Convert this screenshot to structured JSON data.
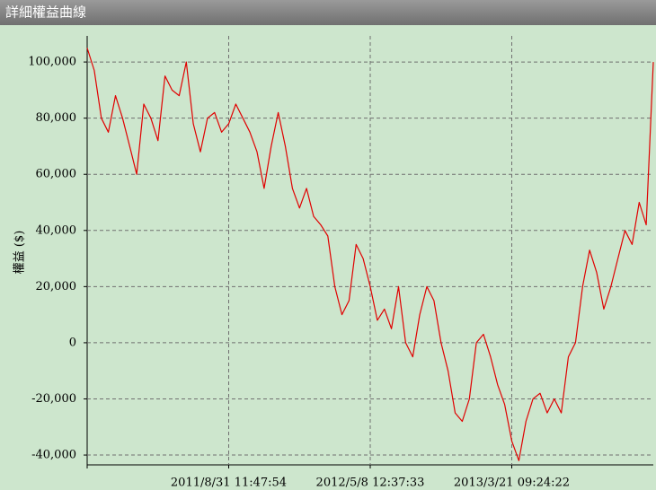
{
  "chart_data": {
    "type": "line",
    "title": "詳細權益曲線",
    "y_label": "權益 ($)",
    "categories": [
      null,
      null,
      null,
      null,
      null,
      null,
      null,
      null,
      null,
      null,
      null,
      null,
      null,
      null,
      null,
      null,
      null,
      null,
      null,
      null,
      "2011/8/31 11:47:54",
      null,
      null,
      null,
      null,
      null,
      null,
      null,
      null,
      null,
      null,
      null,
      null,
      null,
      null,
      null,
      null,
      null,
      null,
      null,
      "2012/5/8 12:37:33",
      null,
      null,
      null,
      null,
      null,
      null,
      null,
      null,
      null,
      null,
      null,
      null,
      null,
      null,
      null,
      null,
      null,
      null,
      null,
      "2013/3/21 09:24:22",
      null,
      null,
      null,
      null,
      null,
      null,
      null,
      null,
      null,
      null,
      null,
      null,
      null,
      null,
      null,
      null,
      null,
      null,
      null,
      null
    ],
    "series": [
      {
        "color": "#e00000",
        "values": [
          105000,
          97000,
          80000,
          75000,
          88000,
          80000,
          70000,
          60000,
          85000,
          80000,
          72000,
          95000,
          90000,
          88000,
          100000,
          78000,
          68000,
          80000,
          82000,
          75000,
          78000,
          85000,
          80000,
          75000,
          68000,
          55000,
          70000,
          82000,
          70000,
          55000,
          48000,
          55000,
          45000,
          42000,
          38000,
          20000,
          10000,
          15000,
          35000,
          30000,
          20000,
          8000,
          12000,
          5000,
          20000,
          0,
          -5000,
          10000,
          20000,
          15000,
          0,
          -10000,
          -25000,
          -28000,
          -20000,
          0,
          3000,
          -5000,
          -15000,
          -22000,
          -35000,
          -42000,
          -28000,
          -20000,
          -18000,
          -25000,
          -20000,
          -25000,
          -5000,
          0,
          20000,
          33000,
          25000,
          12000,
          20000,
          30000,
          40000,
          35000,
          50000,
          42000,
          100000
        ]
      }
    ],
    "ylim": [
      -43500,
      109300
    ],
    "yticks": [
      {
        "value": -40000,
        "label": "-40,000"
      },
      {
        "value": -20000,
        "label": "-20,000"
      },
      0,
      {
        "value": 20000,
        "label": "20,000"
      },
      {
        "value": 40000,
        "label": "40,000"
      },
      {
        "value": 60000,
        "label": "60,000"
      },
      {
        "value": 80000,
        "label": "80,000"
      },
      {
        "value": 100000,
        "label": "100,000"
      }
    ],
    "grid": true
  }
}
